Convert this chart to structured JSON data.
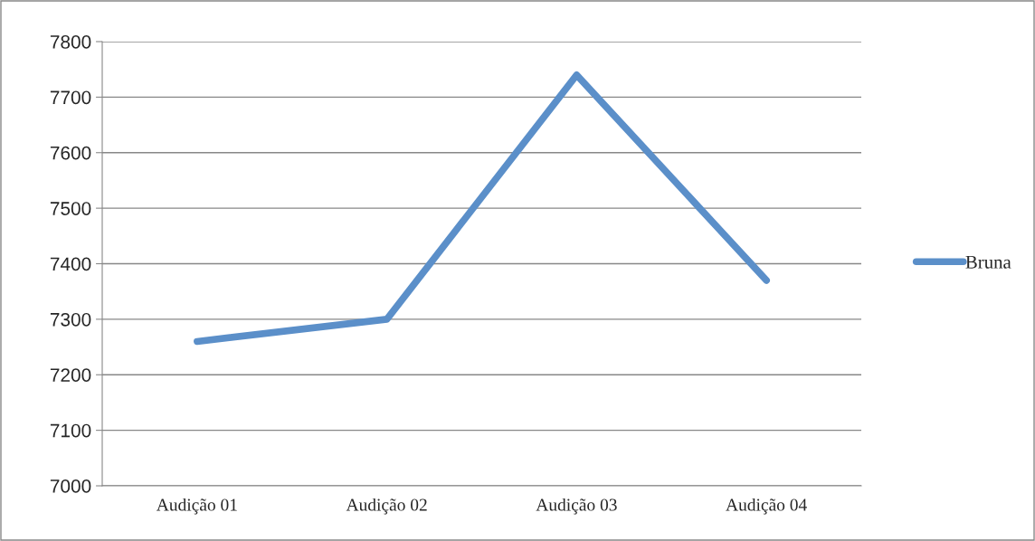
{
  "chart_data": {
    "type": "line",
    "categories": [
      "Audição 01",
      "Audição 02",
      "Audição 03",
      "Audição 04"
    ],
    "series": [
      {
        "name": "Bruna",
        "color": "#5b8fc9",
        "values": [
          7260,
          7300,
          7740,
          7370
        ]
      }
    ],
    "ylim": [
      7000,
      7800
    ],
    "yticks": [
      7000,
      7100,
      7200,
      7300,
      7400,
      7500,
      7600,
      7700,
      7800
    ],
    "grid": "y",
    "legend": "right",
    "marker": "none",
    "line_style": "solid"
  }
}
